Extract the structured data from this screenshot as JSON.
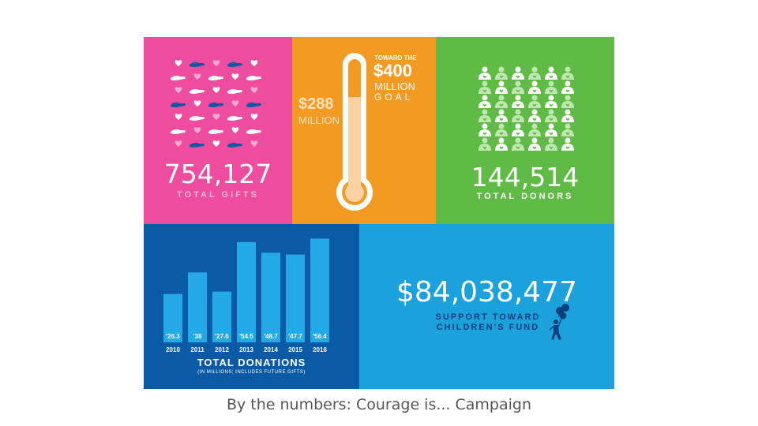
{
  "colors": {
    "pink": "#EE4C9E",
    "orange": "#F39A22",
    "green": "#5FBB46",
    "navy": "#0B5AA6",
    "blue": "#1BA1DC",
    "light_green": "#BFE6B0",
    "bar_blue": "#22A9E6",
    "dark_navy": "#0D3F7E"
  },
  "gifts": {
    "value": "754,127",
    "label": "TOTAL GIFTS"
  },
  "goal": {
    "raised": "$288",
    "raised_unit": "MILLION",
    "toward": "TOWARD THE",
    "goal_amount": "$400",
    "goal_unit": "MILLION",
    "goal_word": "GOAL",
    "fill_fraction": 0.72
  },
  "donors": {
    "value": "144,514",
    "label": "TOTAL DONORS"
  },
  "support": {
    "value": "$84,038,477",
    "line1": "SUPPORT TOWARD",
    "line2": "CHILDREN'S FUND"
  },
  "chart_data": {
    "type": "bar",
    "title": "TOTAL DONATIONS",
    "subtitle": "(IN MILLIONS; INCLUDES FUTURE GIFTS)",
    "categories": [
      "2010",
      "2011",
      "2012",
      "2013",
      "2014",
      "2015",
      "2016"
    ],
    "values": [
      26.3,
      38,
      27.6,
      54.5,
      48.7,
      47.7,
      56.4
    ],
    "value_labels": [
      "'26.3",
      "'38",
      "'27.6",
      "'54.5",
      "'48.7",
      "'47.7",
      "'56.4"
    ],
    "ylim": [
      0,
      60
    ],
    "grid": false,
    "legend": "none"
  },
  "caption": "By the numbers: Courage is... Campaign"
}
